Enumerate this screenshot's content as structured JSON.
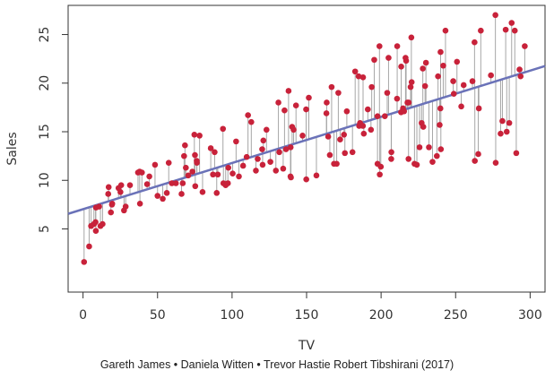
{
  "chart_data": {
    "type": "scatter",
    "title": "",
    "xlabel": "TV",
    "ylabel": "Sales",
    "xlim": [
      -10,
      310
    ],
    "ylim": [
      -1.5,
      28
    ],
    "xticks": [
      0,
      50,
      100,
      150,
      200,
      250,
      300
    ],
    "yticks": [
      5,
      10,
      15,
      20,
      25
    ],
    "grid": false,
    "regression_line": {
      "intercept": 7.03,
      "slope": 0.0475,
      "color": "#6a72b8"
    },
    "point_color": "#c8223a",
    "residual_color": "#a6a6a6",
    "box_color": "#333333",
    "points": [
      {
        "x": 0.7,
        "y": 1.6
      },
      {
        "x": 4.1,
        "y": 3.2
      },
      {
        "x": 5.4,
        "y": 5.3
      },
      {
        "x": 7.3,
        "y": 5.5
      },
      {
        "x": 8.4,
        "y": 5.7
      },
      {
        "x": 8.6,
        "y": 4.8
      },
      {
        "x": 8.7,
        "y": 7.2
      },
      {
        "x": 10.8,
        "y": 7.3
      },
      {
        "x": 11.7,
        "y": 5.3
      },
      {
        "x": 13.1,
        "y": 5.5
      },
      {
        "x": 16.9,
        "y": 8.6
      },
      {
        "x": 17.2,
        "y": 9.3
      },
      {
        "x": 18.7,
        "y": 6.7
      },
      {
        "x": 19.4,
        "y": 7.5
      },
      {
        "x": 19.6,
        "y": 7.6
      },
      {
        "x": 23.8,
        "y": 9.2
      },
      {
        "x": 25.1,
        "y": 8.8
      },
      {
        "x": 25.6,
        "y": 9.5
      },
      {
        "x": 27.5,
        "y": 6.9
      },
      {
        "x": 28.6,
        "y": 7.3
      },
      {
        "x": 31.5,
        "y": 9.5
      },
      {
        "x": 36.9,
        "y": 10.8
      },
      {
        "x": 38.0,
        "y": 10.9
      },
      {
        "x": 38.2,
        "y": 7.6
      },
      {
        "x": 39.5,
        "y": 10.8
      },
      {
        "x": 43.0,
        "y": 9.6
      },
      {
        "x": 44.5,
        "y": 10.4
      },
      {
        "x": 48.3,
        "y": 11.6
      },
      {
        "x": 50.0,
        "y": 8.4
      },
      {
        "x": 53.5,
        "y": 8.1
      },
      {
        "x": 56.2,
        "y": 8.7
      },
      {
        "x": 57.5,
        "y": 11.8
      },
      {
        "x": 59.6,
        "y": 9.7
      },
      {
        "x": 62.3,
        "y": 9.7
      },
      {
        "x": 66.1,
        "y": 8.6
      },
      {
        "x": 66.9,
        "y": 9.7
      },
      {
        "x": 67.8,
        "y": 12.5
      },
      {
        "x": 68.4,
        "y": 13.6
      },
      {
        "x": 69.0,
        "y": 11.3
      },
      {
        "x": 70.6,
        "y": 10.5
      },
      {
        "x": 73.4,
        "y": 10.9
      },
      {
        "x": 74.7,
        "y": 14.7
      },
      {
        "x": 75.1,
        "y": 12.6
      },
      {
        "x": 75.3,
        "y": 9.4
      },
      {
        "x": 76.3,
        "y": 12.0
      },
      {
        "x": 76.4,
        "y": 11.8
      },
      {
        "x": 78.2,
        "y": 14.6
      },
      {
        "x": 80.2,
        "y": 8.8
      },
      {
        "x": 85.7,
        "y": 13.3
      },
      {
        "x": 87.2,
        "y": 10.6
      },
      {
        "x": 88.3,
        "y": 12.9
      },
      {
        "x": 89.7,
        "y": 8.7
      },
      {
        "x": 90.4,
        "y": 10.6
      },
      {
        "x": 93.9,
        "y": 15.3
      },
      {
        "x": 94.2,
        "y": 9.7
      },
      {
        "x": 95.7,
        "y": 9.5
      },
      {
        "x": 97.2,
        "y": 9.7
      },
      {
        "x": 97.5,
        "y": 11.3
      },
      {
        "x": 100.4,
        "y": 10.7
      },
      {
        "x": 102.7,
        "y": 14.0
      },
      {
        "x": 104.6,
        "y": 10.4
      },
      {
        "x": 107.4,
        "y": 11.5
      },
      {
        "x": 109.8,
        "y": 12.4
      },
      {
        "x": 110.7,
        "y": 16.7
      },
      {
        "x": 112.9,
        "y": 16.0
      },
      {
        "x": 116.0,
        "y": 11.0
      },
      {
        "x": 117.2,
        "y": 12.2
      },
      {
        "x": 120.2,
        "y": 13.2
      },
      {
        "x": 120.5,
        "y": 11.6
      },
      {
        "x": 121.0,
        "y": 14.1
      },
      {
        "x": 123.1,
        "y": 15.2
      },
      {
        "x": 125.7,
        "y": 11.9
      },
      {
        "x": 129.4,
        "y": 11.0
      },
      {
        "x": 131.1,
        "y": 18.0
      },
      {
        "x": 131.7,
        "y": 12.9
      },
      {
        "x": 134.3,
        "y": 11.2
      },
      {
        "x": 135.2,
        "y": 17.2
      },
      {
        "x": 136.2,
        "y": 13.2
      },
      {
        "x": 137.9,
        "y": 19.2
      },
      {
        "x": 139.2,
        "y": 10.4
      },
      {
        "x": 139.5,
        "y": 10.3
      },
      {
        "x": 139.3,
        "y": 13.4
      },
      {
        "x": 140.3,
        "y": 15.5
      },
      {
        "x": 141.3,
        "y": 15.2
      },
      {
        "x": 142.9,
        "y": 17.7
      },
      {
        "x": 147.3,
        "y": 14.6
      },
      {
        "x": 149.7,
        "y": 17.3
      },
      {
        "x": 149.8,
        "y": 10.1
      },
      {
        "x": 151.5,
        "y": 18.5
      },
      {
        "x": 156.6,
        "y": 10.5
      },
      {
        "x": 163.3,
        "y": 16.9
      },
      {
        "x": 163.5,
        "y": 18.0
      },
      {
        "x": 164.5,
        "y": 14.5
      },
      {
        "x": 165.6,
        "y": 12.6
      },
      {
        "x": 166.8,
        "y": 19.6
      },
      {
        "x": 168.4,
        "y": 11.7
      },
      {
        "x": 170.2,
        "y": 11.7
      },
      {
        "x": 171.3,
        "y": 19.0
      },
      {
        "x": 172.5,
        "y": 14.2
      },
      {
        "x": 175.1,
        "y": 14.7
      },
      {
        "x": 175.7,
        "y": 12.8
      },
      {
        "x": 177.0,
        "y": 17.1
      },
      {
        "x": 180.8,
        "y": 12.9
      },
      {
        "x": 182.6,
        "y": 21.2
      },
      {
        "x": 184.9,
        "y": 20.7
      },
      {
        "x": 185.3,
        "y": 15.6
      },
      {
        "x": 185.9,
        "y": 15.9
      },
      {
        "x": 187.8,
        "y": 15.6
      },
      {
        "x": 187.9,
        "y": 20.6
      },
      {
        "x": 188.4,
        "y": 14.8
      },
      {
        "x": 191.1,
        "y": 17.3
      },
      {
        "x": 193.2,
        "y": 15.2
      },
      {
        "x": 193.7,
        "y": 19.6
      },
      {
        "x": 195.4,
        "y": 22.4
      },
      {
        "x": 197.6,
        "y": 11.7
      },
      {
        "x": 197.6,
        "y": 16.6
      },
      {
        "x": 198.9,
        "y": 23.8
      },
      {
        "x": 199.1,
        "y": 10.6
      },
      {
        "x": 199.8,
        "y": 11.4
      },
      {
        "x": 202.5,
        "y": 16.6
      },
      {
        "x": 204.1,
        "y": 19.0
      },
      {
        "x": 205.0,
        "y": 22.6
      },
      {
        "x": 206.8,
        "y": 12.2
      },
      {
        "x": 206.9,
        "y": 12.9
      },
      {
        "x": 210.7,
        "y": 18.4
      },
      {
        "x": 210.8,
        "y": 23.8
      },
      {
        "x": 213.4,
        "y": 17.0
      },
      {
        "x": 213.5,
        "y": 21.7
      },
      {
        "x": 214.7,
        "y": 17.4
      },
      {
        "x": 215.4,
        "y": 17.1
      },
      {
        "x": 216.4,
        "y": 22.6
      },
      {
        "x": 216.8,
        "y": 22.3
      },
      {
        "x": 217.7,
        "y": 18.0
      },
      {
        "x": 218.4,
        "y": 12.2
      },
      {
        "x": 218.5,
        "y": 18.0
      },
      {
        "x": 219.8,
        "y": 19.6
      },
      {
        "x": 220.3,
        "y": 24.7
      },
      {
        "x": 220.5,
        "y": 20.1
      },
      {
        "x": 222.4,
        "y": 11.7
      },
      {
        "x": 224.0,
        "y": 11.6
      },
      {
        "x": 225.8,
        "y": 13.4
      },
      {
        "x": 227.2,
        "y": 15.9
      },
      {
        "x": 228.0,
        "y": 21.5
      },
      {
        "x": 228.3,
        "y": 15.5
      },
      {
        "x": 229.5,
        "y": 19.7
      },
      {
        "x": 230.1,
        "y": 22.1
      },
      {
        "x": 232.1,
        "y": 13.4
      },
      {
        "x": 234.5,
        "y": 11.9
      },
      {
        "x": 237.4,
        "y": 12.5
      },
      {
        "x": 238.2,
        "y": 20.7
      },
      {
        "x": 239.3,
        "y": 15.7
      },
      {
        "x": 239.8,
        "y": 17.4
      },
      {
        "x": 239.9,
        "y": 23.2
      },
      {
        "x": 240.1,
        "y": 13.2
      },
      {
        "x": 241.7,
        "y": 21.8
      },
      {
        "x": 243.2,
        "y": 25.4
      },
      {
        "x": 248.4,
        "y": 20.2
      },
      {
        "x": 248.8,
        "y": 18.9
      },
      {
        "x": 250.9,
        "y": 22.2
      },
      {
        "x": 253.8,
        "y": 17.6
      },
      {
        "x": 255.4,
        "y": 19.8
      },
      {
        "x": 261.3,
        "y": 20.2
      },
      {
        "x": 262.7,
        "y": 24.2
      },
      {
        "x": 262.9,
        "y": 12.0
      },
      {
        "x": 265.2,
        "y": 12.7
      },
      {
        "x": 265.6,
        "y": 17.4
      },
      {
        "x": 266.9,
        "y": 25.4
      },
      {
        "x": 273.7,
        "y": 20.8
      },
      {
        "x": 276.7,
        "y": 27.0
      },
      {
        "x": 276.9,
        "y": 11.8
      },
      {
        "x": 280.2,
        "y": 14.8
      },
      {
        "x": 281.4,
        "y": 16.1
      },
      {
        "x": 283.6,
        "y": 25.5
      },
      {
        "x": 284.3,
        "y": 15.0
      },
      {
        "x": 286.0,
        "y": 15.9
      },
      {
        "x": 287.6,
        "y": 26.2
      },
      {
        "x": 289.7,
        "y": 25.4
      },
      {
        "x": 290.7,
        "y": 12.8
      },
      {
        "x": 292.9,
        "y": 21.4
      },
      {
        "x": 293.6,
        "y": 20.7
      },
      {
        "x": 296.4,
        "y": 23.8
      }
    ]
  },
  "caption": "Gareth James • Daniela Witten • Trevor Hastie Robert Tibshirani  (2017)"
}
